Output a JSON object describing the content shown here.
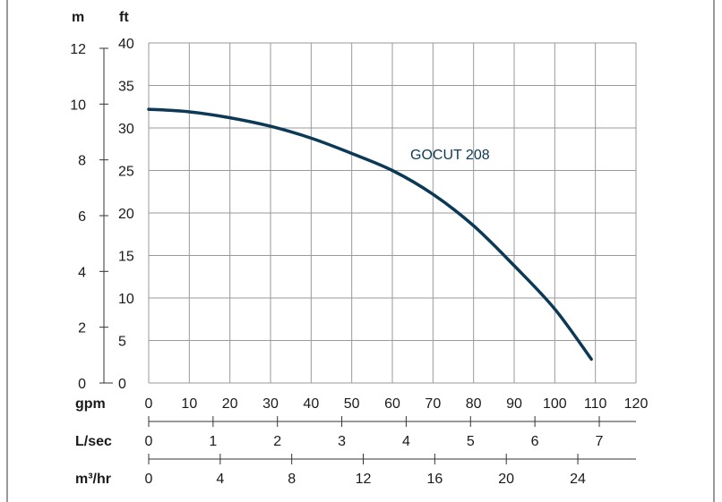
{
  "chart_data": {
    "type": "line",
    "title": "",
    "grid": true,
    "series": [
      {
        "name": "GOCUT 208",
        "color": "#0c3a56",
        "x": [
          0,
          10,
          20,
          30,
          40,
          50,
          60,
          70,
          80,
          90,
          100,
          109
        ],
        "y": [
          32.2,
          31.9,
          31.2,
          30.2,
          28.8,
          27.0,
          25.0,
          22.2,
          18.5,
          13.8,
          8.7,
          2.8
        ]
      }
    ],
    "x_axes": [
      {
        "unit": "gpm",
        "ticks": [
          "0",
          "10",
          "20",
          "30",
          "40",
          "50",
          "60",
          "70",
          "80",
          "90",
          "100",
          "110",
          "120"
        ],
        "values": [
          0,
          10,
          20,
          30,
          40,
          50,
          60,
          70,
          80,
          90,
          100,
          110,
          120
        ]
      },
      {
        "unit": "L/sec",
        "ticks": [
          "0",
          "1",
          "2",
          "3",
          "4",
          "5",
          "6",
          "7"
        ],
        "values": [
          0,
          1,
          2,
          3,
          4,
          5,
          6,
          7
        ]
      },
      {
        "unit": "m³/hr",
        "ticks": [
          "0",
          "4",
          "8",
          "12",
          "16",
          "20",
          "24"
        ],
        "values": [
          0,
          4,
          8,
          12,
          16,
          20,
          24
        ]
      }
    ],
    "y_axes": [
      {
        "unit": "m",
        "ticks": [
          "0",
          "2",
          "4",
          "6",
          "8",
          "10",
          "12"
        ],
        "values": [
          0,
          2,
          4,
          6,
          8,
          10,
          12
        ]
      },
      {
        "unit": "ft",
        "ticks": [
          "0",
          "5",
          "10",
          "15",
          "20",
          "25",
          "30",
          "35",
          "40"
        ],
        "values": [
          0,
          5,
          10,
          15,
          20,
          25,
          30,
          35,
          40
        ]
      }
    ],
    "xlim_gpm": [
      0,
      120
    ],
    "ylim_ft": [
      0,
      40
    ]
  }
}
